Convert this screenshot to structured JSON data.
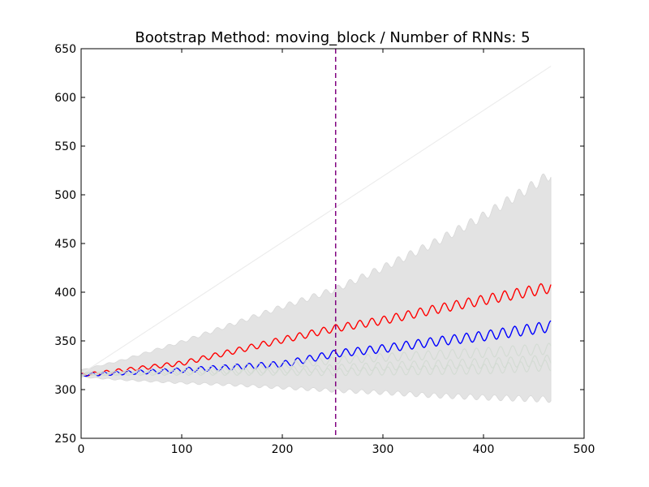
{
  "chart_data": {
    "type": "line",
    "title": "Bootstrap Method: moving_block / Number of RNNs: 5",
    "xlabel": "",
    "ylabel": "",
    "xlim": [
      0,
      500
    ],
    "ylim": [
      250,
      650
    ],
    "x_ticks": [
      0,
      100,
      200,
      300,
      400,
      500
    ],
    "y_ticks": [
      250,
      300,
      350,
      400,
      450,
      500,
      550,
      600,
      650
    ],
    "grid": false,
    "legend": "none",
    "x_end": 467,
    "seasonal_period": 12,
    "vline": {
      "x": 253,
      "color": "#800080",
      "style": "dashed"
    },
    "band": {
      "color": "#e3e3e3",
      "lower": {
        "x": [
          0,
          40,
          100,
          150,
          200,
          253,
          300,
          350,
          400,
          467
        ],
        "y": [
          313,
          310,
          307,
          305,
          302,
          299,
          297,
          294,
          292,
          290
        ]
      },
      "upper": {
        "x": [
          0,
          40,
          100,
          150,
          200,
          253,
          300,
          350,
          400,
          467
        ],
        "y": [
          320,
          330,
          349,
          367,
          385,
          403,
          425,
          450,
          478,
          521
        ]
      }
    },
    "series": [
      {
        "color": "#ebebeb",
        "x": [
          0,
          467
        ],
        "y": [
          316,
          632
        ]
      },
      {
        "color": "#ff0000",
        "x": [
          0,
          100,
          200,
          253,
          300,
          350,
          400,
          467
        ],
        "y": [
          315,
          327,
          351,
          363,
          371,
          382,
          392,
          405
        ]
      },
      {
        "color": "#0000ff",
        "x": [
          0,
          100,
          200,
          253,
          300,
          350,
          400,
          467
        ],
        "y": [
          315,
          320,
          326,
          337,
          342,
          349,
          355,
          365
        ]
      },
      {
        "color": "#d3dbd3",
        "x": [
          0,
          100,
          200,
          253,
          300,
          400,
          467
        ],
        "y": [
          316,
          320,
          325,
          330,
          333,
          338,
          342
        ]
      },
      {
        "color": "#d3dbd3",
        "x": [
          0,
          100,
          200,
          253,
          300,
          400,
          467
        ],
        "y": [
          316,
          318,
          320,
          322,
          324,
          327,
          330
        ]
      },
      {
        "color": "#d3dbd3",
        "x": [
          0,
          100,
          200,
          253,
          300,
          400,
          467
        ],
        "y": [
          316,
          317,
          318,
          318,
          319,
          321,
          325
        ]
      }
    ]
  }
}
